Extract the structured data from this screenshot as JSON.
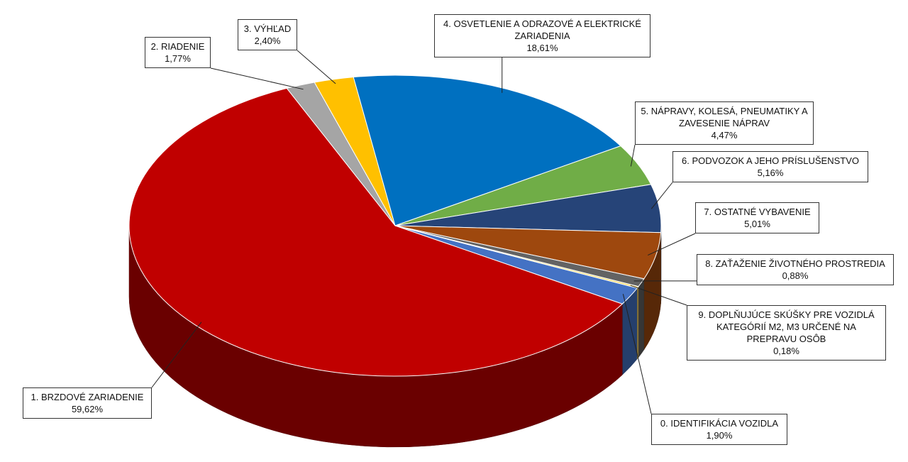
{
  "chart_data": {
    "type": "pie",
    "categories": [
      "0. IDENTIFIKÁCIA VOZIDLA",
      "1. BRZDOVÉ ZARIADENIE",
      "2. RIADENIE",
      "3. VÝHĽAD",
      "4. OSVETLENIE A ODRAZOVÉ A ELEKTRICKÉ ZARIADENIA",
      "5. NÁPRAVY, KOLESÁ, PNEUMATIKY A ZAVESENIE NÁPRAV",
      "6. PODVOZOK A JEHO PRÍSLUŠENSTVO",
      "7. OSTATNÉ VYBAVENIE",
      "8. ZAŤAŽENIE ŽIVOTNÉHO PROSTREDIA",
      "9. DOPLŇUJÚCE SKÚŠKY PRE VOZIDLÁ KATEGÓRIÍ M2, M3 URČENÉ NA PREPRAVU OSÔB"
    ],
    "values": [
      1.9,
      59.62,
      1.77,
      2.4,
      18.61,
      4.47,
      5.16,
      5.01,
      0.88,
      0.18
    ],
    "value_labels": [
      "1,90%",
      "59,62%",
      "1,77%",
      "2,40%",
      "18,61%",
      "4,47%",
      "5,16%",
      "5,01%",
      "0,88%",
      "0,18%"
    ],
    "colors": [
      "#4472c4",
      "#c00000",
      "#a5a5a5",
      "#ffc000",
      "#0070c0",
      "#70ad47",
      "#264478",
      "#9e480e",
      "#636363",
      "#ffd966"
    ]
  }
}
